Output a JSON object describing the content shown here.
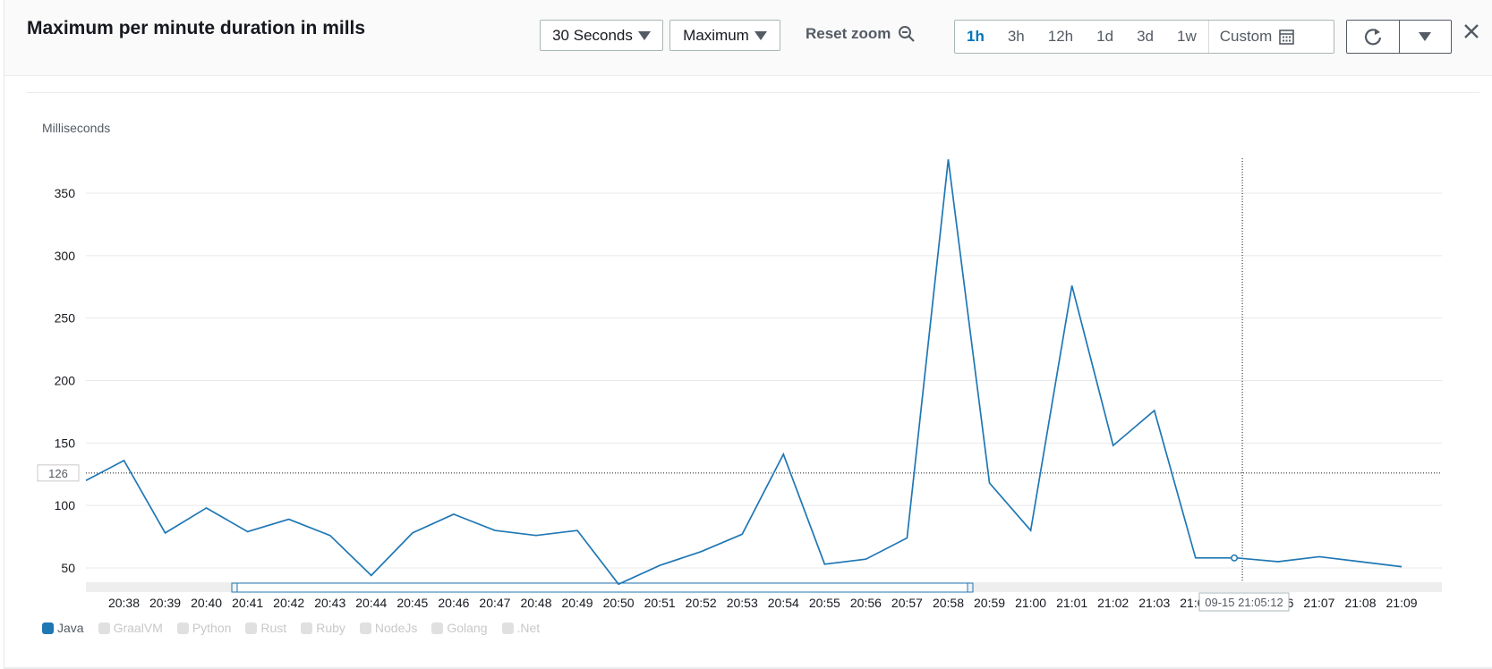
{
  "header": {
    "title": "Maximum per minute duration in mills",
    "period_label": "30 Seconds",
    "statistic_label": "Maximum",
    "reset_zoom_label": "Reset zoom",
    "ranges": [
      "1h",
      "3h",
      "12h",
      "1d",
      "3d",
      "1w"
    ],
    "active_range": "1h",
    "custom_label": "Custom"
  },
  "icons": {
    "period_caret": "caret-down-icon",
    "statistic_caret": "caret-down-icon",
    "reset_zoom": "zoom-out-icon",
    "custom": "calendar-icon",
    "refresh": "refresh-icon",
    "refresh_menu": "caret-down-icon",
    "close": "close-icon"
  },
  "colors": {
    "series": "#1f77b4",
    "active_range": "#0073bb",
    "grid": "#e8e8e8"
  },
  "crosshair": {
    "y_value_label": "126",
    "y_value": 126,
    "time_label": "09-15 21:05:12",
    "point_value": 58
  },
  "legend": {
    "items": [
      {
        "label": "Java",
        "enabled": true
      },
      {
        "label": "GraalVM",
        "enabled": false
      },
      {
        "label": "Python",
        "enabled": false
      },
      {
        "label": "Rust",
        "enabled": false
      },
      {
        "label": "Ruby",
        "enabled": false
      },
      {
        "label": "NodeJs",
        "enabled": false
      },
      {
        "label": "Golang",
        "enabled": false
      },
      {
        "label": ".Net",
        "enabled": false
      }
    ]
  },
  "chart_data": {
    "type": "line",
    "ylabel": "Milliseconds",
    "ylim": [
      37,
      378
    ],
    "yticks": [
      50,
      100,
      150,
      200,
      250,
      300,
      350
    ],
    "grid": true,
    "legend_position": "bottom-left",
    "x_ticks": [
      "20:38",
      "20:39",
      "20:40",
      "20:41",
      "20:42",
      "20:43",
      "20:44",
      "20:45",
      "20:46",
      "20:47",
      "20:48",
      "20:49",
      "20:50",
      "20:51",
      "20:52",
      "20:53",
      "20:54",
      "20:55",
      "20:56",
      "20:57",
      "20:58",
      "20:59",
      "21:00",
      "21:01",
      "21:02",
      "21:03",
      "21:04",
      "21:05",
      "21:06",
      "21:07",
      "21:08",
      "21:09"
    ],
    "series": [
      {
        "name": "Java",
        "x": [
          "20:37:30",
          "20:38",
          "20:39",
          "20:40",
          "20:41",
          "20:42",
          "20:43",
          "20:44",
          "20:45",
          "20:46",
          "20:47",
          "20:48",
          "20:49",
          "20:50",
          "20:51",
          "20:52",
          "20:53",
          "20:54",
          "20:55",
          "20:56",
          "20:57",
          "20:58",
          "20:59",
          "21:00",
          "21:01",
          "21:02",
          "21:03",
          "21:04",
          "21:05",
          "21:06",
          "21:07",
          "21:08",
          "21:09"
        ],
        "values": [
          120,
          136,
          78,
          98,
          79,
          89,
          76,
          44,
          78,
          93,
          80,
          76,
          80,
          37,
          52,
          63,
          77,
          141,
          53,
          57,
          74,
          377,
          118,
          80,
          276,
          148,
          176,
          58,
          58,
          55,
          59,
          55,
          51
        ]
      }
    ]
  }
}
